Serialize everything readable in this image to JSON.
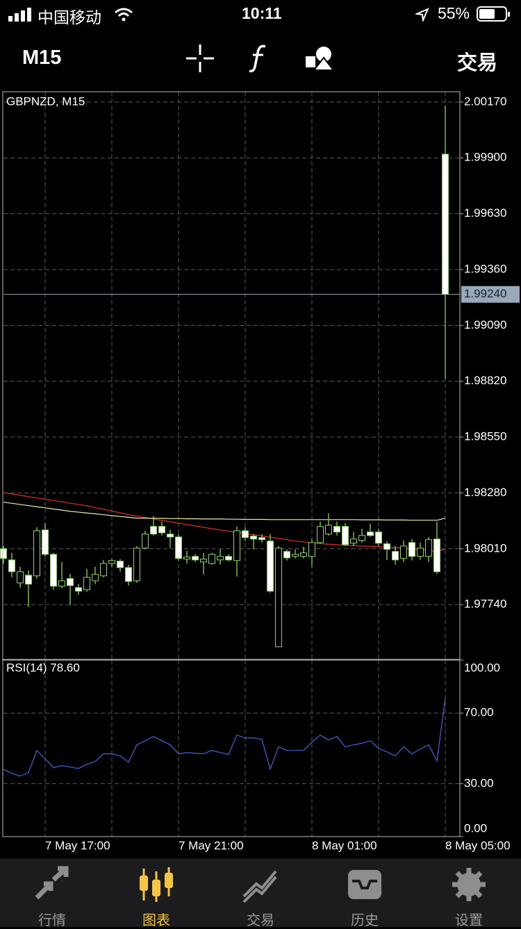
{
  "status_bar": {
    "carrier": "中国移动",
    "time": "10:11",
    "battery": "55%"
  },
  "toolbar": {
    "timeframe": "M15",
    "trade": "交易"
  },
  "chart_data": [
    {
      "type": "candlestick",
      "title": "GBPNZD, M15",
      "categories": [
        null,
        null,
        null,
        null,
        null,
        "7 May 17:00",
        null,
        null,
        null,
        null,
        null,
        null,
        null,
        null,
        null,
        null,
        null,
        null,
        null,
        null,
        null,
        "7 May 21:00",
        null,
        null,
        null,
        null,
        null,
        null,
        null,
        null,
        null,
        null,
        null,
        null,
        null,
        null,
        null,
        "8 May 01:00",
        null,
        null,
        null,
        null,
        null,
        null,
        null,
        null,
        null,
        null,
        null,
        null,
        null,
        null,
        null,
        "8 May 05:00"
      ],
      "open": [
        1.9801,
        1.97956,
        1.97845,
        1.97882,
        1.97879,
        1.98101,
        1.97983,
        1.97829,
        1.97866,
        1.97822,
        1.97812,
        1.97855,
        1.97879,
        1.97939,
        1.9795,
        1.97919,
        1.97855,
        1.98013,
        1.98118,
        1.98118,
        1.98081,
        1.98067,
        1.9796,
        1.97973,
        1.97946,
        1.97939,
        1.97956,
        1.97973,
        1.97953,
        1.98097,
        1.98071,
        1.98064,
        1.98047,
        1.97536,
        1.97997,
        1.97973,
        1.97973,
        1.97973,
        1.9804,
        1.98081,
        1.98118,
        1.98118,
        1.98037,
        1.9805,
        1.98091,
        1.98091,
        1.98034,
        1.97997,
        1.97963,
        1.9804,
        1.97973,
        1.97973,
        1.98057,
        1.99918
      ],
      "high": [
        1.98023,
        1.9799,
        1.97923,
        1.97906,
        1.98114,
        1.98134,
        1.9799,
        1.97946,
        1.97889,
        1.97839,
        1.97913,
        1.97923,
        1.97956,
        1.9796,
        1.9796,
        1.97933,
        1.98023,
        1.98097,
        1.98168,
        1.98141,
        1.98101,
        1.98081,
        1.98,
        1.97983,
        1.9799,
        1.9799,
        1.98007,
        1.97983,
        1.98118,
        1.98114,
        1.98081,
        1.98081,
        1.98081,
        1.98023,
        1.98007,
        1.98007,
        1.9802,
        1.98057,
        1.98141,
        1.98181,
        1.98141,
        1.98134,
        1.98091,
        1.98107,
        1.98131,
        1.98107,
        1.98047,
        1.98023,
        1.9805,
        1.98057,
        1.9804,
        1.98067,
        1.98141,
        2.00153
      ],
      "low": [
        1.97939,
        1.97872,
        1.97822,
        1.97728,
        1.97866,
        1.97973,
        1.97812,
        1.97819,
        1.97738,
        1.97788,
        1.97802,
        1.97839,
        1.97872,
        1.97923,
        1.97899,
        1.97832,
        1.97845,
        1.98007,
        1.98074,
        1.98074,
        1.98013,
        1.97953,
        1.97939,
        1.97946,
        1.97886,
        1.97933,
        1.97933,
        1.9795,
        1.97876,
        1.98047,
        1.98007,
        1.9804,
        1.97798,
        1.97536,
        1.97953,
        1.97963,
        1.97963,
        1.97923,
        1.98034,
        1.98074,
        1.98074,
        1.98023,
        1.98023,
        1.9804,
        1.98067,
        1.98023,
        1.97956,
        1.97933,
        1.97946,
        1.97953,
        1.97956,
        1.97946,
        1.97889,
        1.98832
      ],
      "close": [
        1.97963,
        1.97899,
        1.97899,
        1.97839,
        1.98097,
        1.97983,
        1.97829,
        1.97855,
        1.97832,
        1.97805,
        1.97872,
        1.97886,
        1.97939,
        1.97953,
        1.97919,
        1.97852,
        1.98013,
        1.98081,
        1.98081,
        1.98087,
        1.98067,
        1.97963,
        1.9797,
        1.97956,
        1.9796,
        1.97983,
        1.97973,
        1.97956,
        1.98097,
        1.98064,
        1.98057,
        1.98054,
        1.97805,
        1.98013,
        1.97966,
        1.97983,
        1.9799,
        1.9804,
        1.98118,
        1.98124,
        1.98091,
        1.9803,
        1.98057,
        1.98074,
        1.98074,
        1.98037,
        1.98007,
        1.97956,
        1.98023,
        1.97973,
        1.98013,
        1.98054,
        1.97899,
        1.9924
      ],
      "up_color": "#000000",
      "down_color": "#ffffff",
      "wick_color": "#86d65a",
      "series": [
        {
          "color": "#e0302a",
          "values": [
            1.98282,
            1.98275,
            1.98269,
            1.98262,
            1.98256,
            1.98249,
            1.98243,
            1.98237,
            1.9823,
            1.98224,
            1.98218,
            1.98209,
            1.98201,
            1.98192,
            1.98184,
            1.98175,
            1.98168,
            1.98161,
            1.98154,
            1.98147,
            1.98141,
            1.98134,
            1.98127,
            1.9812,
            1.98114,
            1.98107,
            1.98101,
            1.98095,
            1.9809,
            1.98084,
            1.98078,
            1.98072,
            1.98066,
            1.9806,
            1.98054,
            1.98048,
            1.98043,
            1.98037,
            1.98035,
            1.98032,
            1.9803,
            1.98027,
            1.98025,
            1.98023,
            1.98022,
            1.9802,
            1.98018,
            1.98015,
            1.98013,
            1.9801,
            1.98006,
            1.98001,
            1.97997,
            1.98007
          ]
        },
        {
          "color": "#e8f2a0",
          "values": [
            1.98235,
            1.9823,
            1.98224,
            1.98219,
            1.98213,
            1.98208,
            1.98202,
            1.98197,
            1.98191,
            1.98187,
            1.98183,
            1.98179,
            1.98175,
            1.9817,
            1.98166,
            1.98162,
            1.98158,
            1.98158,
            1.98157,
            1.98157,
            1.98156,
            1.98156,
            1.98155,
            1.98155,
            1.98154,
            1.98154,
            1.98154,
            1.98153,
            1.98153,
            1.98152,
            1.98152,
            1.98152,
            1.98151,
            1.98151,
            1.98151,
            1.98151,
            1.98151,
            1.98151,
            1.98151,
            1.98151,
            1.98151,
            1.98151,
            1.98151,
            1.9815,
            1.9815,
            1.9815,
            1.98149,
            1.98149,
            1.98149,
            1.98148,
            1.98148,
            1.98148,
            1.98148,
            1.98158
          ]
        }
      ],
      "current_price": {
        "value": 1.9924,
        "label": "1.99240"
      },
      "ylim": [
        1.97475,
        2.0022
      ],
      "yticks": [
        {
          "value": 2.0017,
          "label": "2.00170"
        },
        {
          "value": 1.999,
          "label": "1.99900"
        },
        {
          "value": 1.9963,
          "label": "1.99630"
        },
        {
          "value": 1.9936,
          "label": "1.99360"
        },
        {
          "value": 1.9909,
          "label": "1.99090"
        },
        {
          "value": 1.9882,
          "label": "1.98820"
        },
        {
          "value": 1.9855,
          "label": "1.98550"
        },
        {
          "value": 1.9828,
          "label": "1.98280"
        },
        {
          "value": 1.9801,
          "label": "1.98010"
        },
        {
          "value": 1.9774,
          "label": "1.97740"
        }
      ],
      "grid": true
    },
    {
      "type": "line",
      "title": "RSI(14) 78.60",
      "color": "#3f63e0",
      "values": [
        38.2,
        35.8,
        34.3,
        36.2,
        48.8,
        44.1,
        39.0,
        40.2,
        39.4,
        38.6,
        40.9,
        42.5,
        46.9,
        46.9,
        45.7,
        42.1,
        52.0,
        54.3,
        56.7,
        54.3,
        52.0,
        46.9,
        47.6,
        47.2,
        46.9,
        48.8,
        47.6,
        46.5,
        57.5,
        55.9,
        55.9,
        55.1,
        38.2,
        50.8,
        48.8,
        48.8,
        48.8,
        53.5,
        57.5,
        54.7,
        56.7,
        50.8,
        52.0,
        52.8,
        54.3,
        50.0,
        48.0,
        45.7,
        50.8,
        46.9,
        49.6,
        52.0,
        42.9,
        78.6
      ],
      "ylim": [
        0,
        100
      ],
      "yticks": [
        {
          "value": 100,
          "label": "100.00"
        },
        {
          "value": 70,
          "label": "70.00"
        },
        {
          "value": 30,
          "label": "30.00"
        },
        {
          "value": 0,
          "label": "0.00"
        }
      ],
      "grid": true
    }
  ],
  "tab_bar": {
    "tabs": [
      "行情",
      "图表",
      "交易",
      "历史",
      "设置"
    ],
    "active": "图表"
  }
}
